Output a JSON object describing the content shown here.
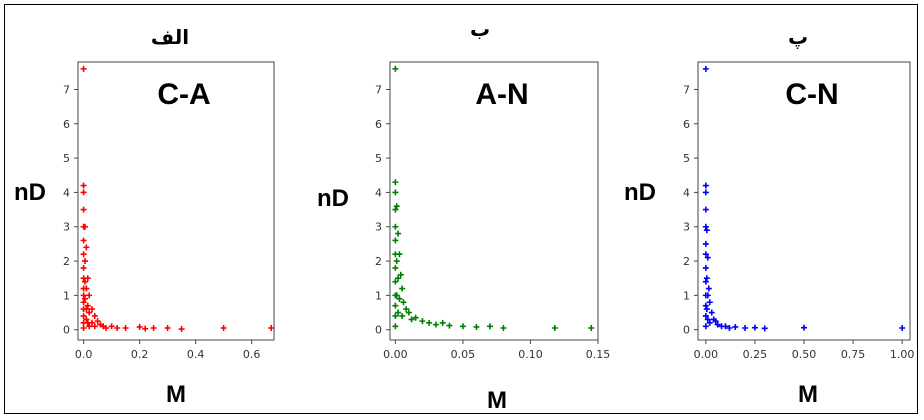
{
  "panels_meta": [
    {
      "letter": "الف",
      "title": "C-A",
      "ylabel": "nD",
      "xlabel": "M",
      "color": "#ff0000"
    },
    {
      "letter": "ب",
      "title": "A-N",
      "ylabel": "nD",
      "xlabel": "M",
      "color": "#008000"
    },
    {
      "letter": "پ",
      "title": "C-N",
      "ylabel": "nD",
      "xlabel": "M",
      "color": "#0000ff"
    }
  ],
  "chart_data": [
    {
      "type": "scatter",
      "title": "C-A",
      "xlabel": "M",
      "ylabel": "nD",
      "xlim": [
        -0.02,
        0.68
      ],
      "ylim": [
        -0.3,
        7.8
      ],
      "xticks": [
        0.0,
        0.2,
        0.4,
        0.6
      ],
      "xtick_labels": [
        "0.0",
        "0.2",
        "0.4",
        "0.6"
      ],
      "yticks": [
        0,
        1,
        2,
        3,
        4,
        5,
        6,
        7
      ],
      "ytick_labels": [
        "0",
        "1",
        "2",
        "3",
        "4",
        "5",
        "6",
        "7"
      ],
      "color": "#ff0000",
      "marker": "+",
      "series": [
        {
          "x": [
            0.0,
            0.0,
            0.0,
            0.0,
            0.0,
            0.0,
            0.0,
            0.0,
            0.0,
            0.0,
            0.0,
            0.0,
            0.0,
            0.0,
            0.0,
            0.0,
            0.005,
            0.005,
            0.005,
            0.005,
            0.01,
            0.01,
            0.01,
            0.01,
            0.015,
            0.015,
            0.015,
            0.02,
            0.02,
            0.02,
            0.03,
            0.03,
            0.04,
            0.04,
            0.05,
            0.06,
            0.07,
            0.08,
            0.1,
            0.12,
            0.15,
            0.2,
            0.22,
            0.25,
            0.3,
            0.35,
            0.5,
            0.67
          ],
          "y": [
            7.6,
            4.2,
            4.0,
            3.5,
            3.0,
            2.6,
            2.2,
            1.8,
            1.5,
            1.2,
            1.0,
            0.8,
            0.6,
            0.4,
            0.2,
            0.05,
            3.0,
            2.0,
            1.4,
            0.9,
            2.4,
            1.2,
            0.6,
            0.3,
            1.5,
            0.7,
            0.2,
            1.0,
            0.5,
            0.1,
            0.6,
            0.2,
            0.4,
            0.1,
            0.25,
            0.15,
            0.1,
            0.05,
            0.1,
            0.05,
            0.05,
            0.08,
            0.03,
            0.05,
            0.05,
            0.02,
            0.05,
            0.05
          ]
        }
      ]
    },
    {
      "type": "scatter",
      "title": "A-N",
      "xlabel": "M",
      "ylabel": "nD",
      "xlim": [
        -0.004,
        0.15
      ],
      "ylim": [
        -0.3,
        7.8
      ],
      "xticks": [
        0.0,
        0.05,
        0.1,
        0.15
      ],
      "xtick_labels": [
        "0.00",
        "0.05",
        "0.10",
        "0.15"
      ],
      "yticks": [
        0,
        1,
        2,
        3,
        4,
        5,
        6,
        7
      ],
      "ytick_labels": [
        "0",
        "1",
        "2",
        "3",
        "4",
        "5",
        "6",
        "7"
      ],
      "color": "#008000",
      "marker": "+",
      "series": [
        {
          "x": [
            0.0,
            0.0,
            0.0,
            0.0,
            0.0,
            0.0,
            0.0,
            0.0,
            0.0,
            0.0,
            0.0,
            0.0,
            0.0,
            0.001,
            0.001,
            0.001,
            0.002,
            0.002,
            0.002,
            0.003,
            0.003,
            0.004,
            0.005,
            0.005,
            0.006,
            0.008,
            0.01,
            0.012,
            0.015,
            0.02,
            0.025,
            0.03,
            0.035,
            0.04,
            0.05,
            0.06,
            0.07,
            0.08,
            0.118,
            0.145
          ],
          "y": [
            7.6,
            4.3,
            4.0,
            3.5,
            3.0,
            2.6,
            2.2,
            1.8,
            1.4,
            1.0,
            0.7,
            0.4,
            0.1,
            3.6,
            2.0,
            1.0,
            2.8,
            1.5,
            0.5,
            2.2,
            0.9,
            1.6,
            1.2,
            0.4,
            0.8,
            0.6,
            0.5,
            0.3,
            0.35,
            0.25,
            0.2,
            0.15,
            0.2,
            0.12,
            0.1,
            0.08,
            0.1,
            0.05,
            0.05,
            0.05
          ]
        }
      ]
    },
    {
      "type": "scatter",
      "title": "C-N",
      "xlabel": "M",
      "ylabel": "nD",
      "xlim": [
        -0.04,
        1.04
      ],
      "ylim": [
        -0.3,
        7.8
      ],
      "xticks": [
        0.0,
        0.25,
        0.5,
        0.75,
        1.0
      ],
      "xtick_labels": [
        "0.00",
        "0.25",
        "0.50",
        "0.75",
        "1.00"
      ],
      "yticks": [
        0,
        1,
        2,
        3,
        4,
        5,
        6,
        7
      ],
      "ytick_labels": [
        "0",
        "1",
        "2",
        "3",
        "4",
        "5",
        "6",
        "7"
      ],
      "color": "#0000ff",
      "marker": "+",
      "series": [
        {
          "x": [
            0.0,
            0.0,
            0.0,
            0.0,
            0.0,
            0.0,
            0.0,
            0.0,
            0.0,
            0.0,
            0.0,
            0.0,
            0.0,
            0.005,
            0.005,
            0.005,
            0.01,
            0.01,
            0.01,
            0.015,
            0.02,
            0.02,
            0.03,
            0.04,
            0.05,
            0.06,
            0.08,
            0.1,
            0.12,
            0.15,
            0.2,
            0.25,
            0.3,
            0.5,
            1.0
          ],
          "y": [
            7.6,
            4.2,
            4.0,
            3.5,
            3.0,
            2.5,
            2.2,
            1.8,
            1.4,
            1.0,
            0.7,
            0.4,
            0.1,
            2.9,
            1.5,
            0.6,
            2.1,
            1.0,
            0.3,
            1.2,
            0.8,
            0.2,
            0.5,
            0.3,
            0.25,
            0.15,
            0.1,
            0.1,
            0.05,
            0.08,
            0.05,
            0.06,
            0.04,
            0.06,
            0.05
          ]
        }
      ]
    }
  ]
}
